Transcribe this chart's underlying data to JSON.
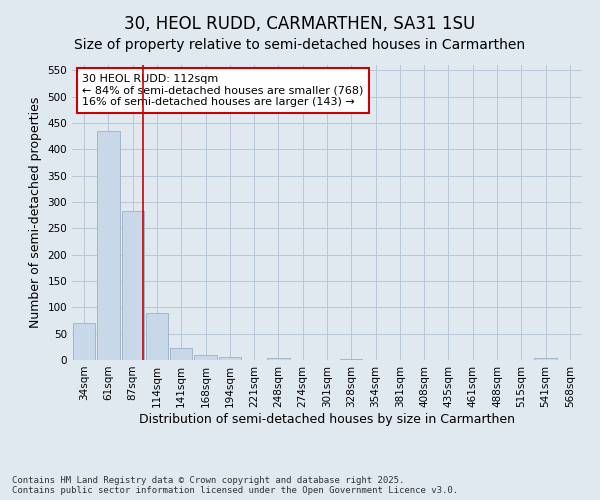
{
  "title": "30, HEOL RUDD, CARMARTHEN, SA31 1SU",
  "subtitle": "Size of property relative to semi-detached houses in Carmarthen",
  "xlabel": "Distribution of semi-detached houses by size in Carmarthen",
  "ylabel": "Number of semi-detached properties",
  "categories": [
    "34sqm",
    "61sqm",
    "87sqm",
    "114sqm",
    "141sqm",
    "168sqm",
    "194sqm",
    "221sqm",
    "248sqm",
    "274sqm",
    "301sqm",
    "328sqm",
    "354sqm",
    "381sqm",
    "408sqm",
    "435sqm",
    "461sqm",
    "488sqm",
    "515sqm",
    "541sqm",
    "568sqm"
  ],
  "values": [
    70,
    435,
    283,
    90,
    22,
    10,
    5,
    0,
    4,
    0,
    0,
    2,
    0,
    0,
    0,
    0,
    0,
    0,
    0,
    4,
    0
  ],
  "bar_color": "#c8d8e8",
  "bar_edge_color": "#9ab0c8",
  "grid_color": "#b8c8d8",
  "background_color": "#e0e8f0",
  "vline_color": "#cc0000",
  "vline_pos": 2.43,
  "annotation_text": "30 HEOL RUDD: 112sqm\n← 84% of semi-detached houses are smaller (768)\n16% of semi-detached houses are larger (143) →",
  "annotation_box_color": "#cc0000",
  "ylim": [
    0,
    560
  ],
  "yticks": [
    0,
    50,
    100,
    150,
    200,
    250,
    300,
    350,
    400,
    450,
    500,
    550
  ],
  "footer": "Contains HM Land Registry data © Crown copyright and database right 2025.\nContains public sector information licensed under the Open Government Licence v3.0.",
  "title_fontsize": 12,
  "subtitle_fontsize": 10,
  "tick_fontsize": 7.5,
  "label_fontsize": 9,
  "annot_fontsize": 8
}
